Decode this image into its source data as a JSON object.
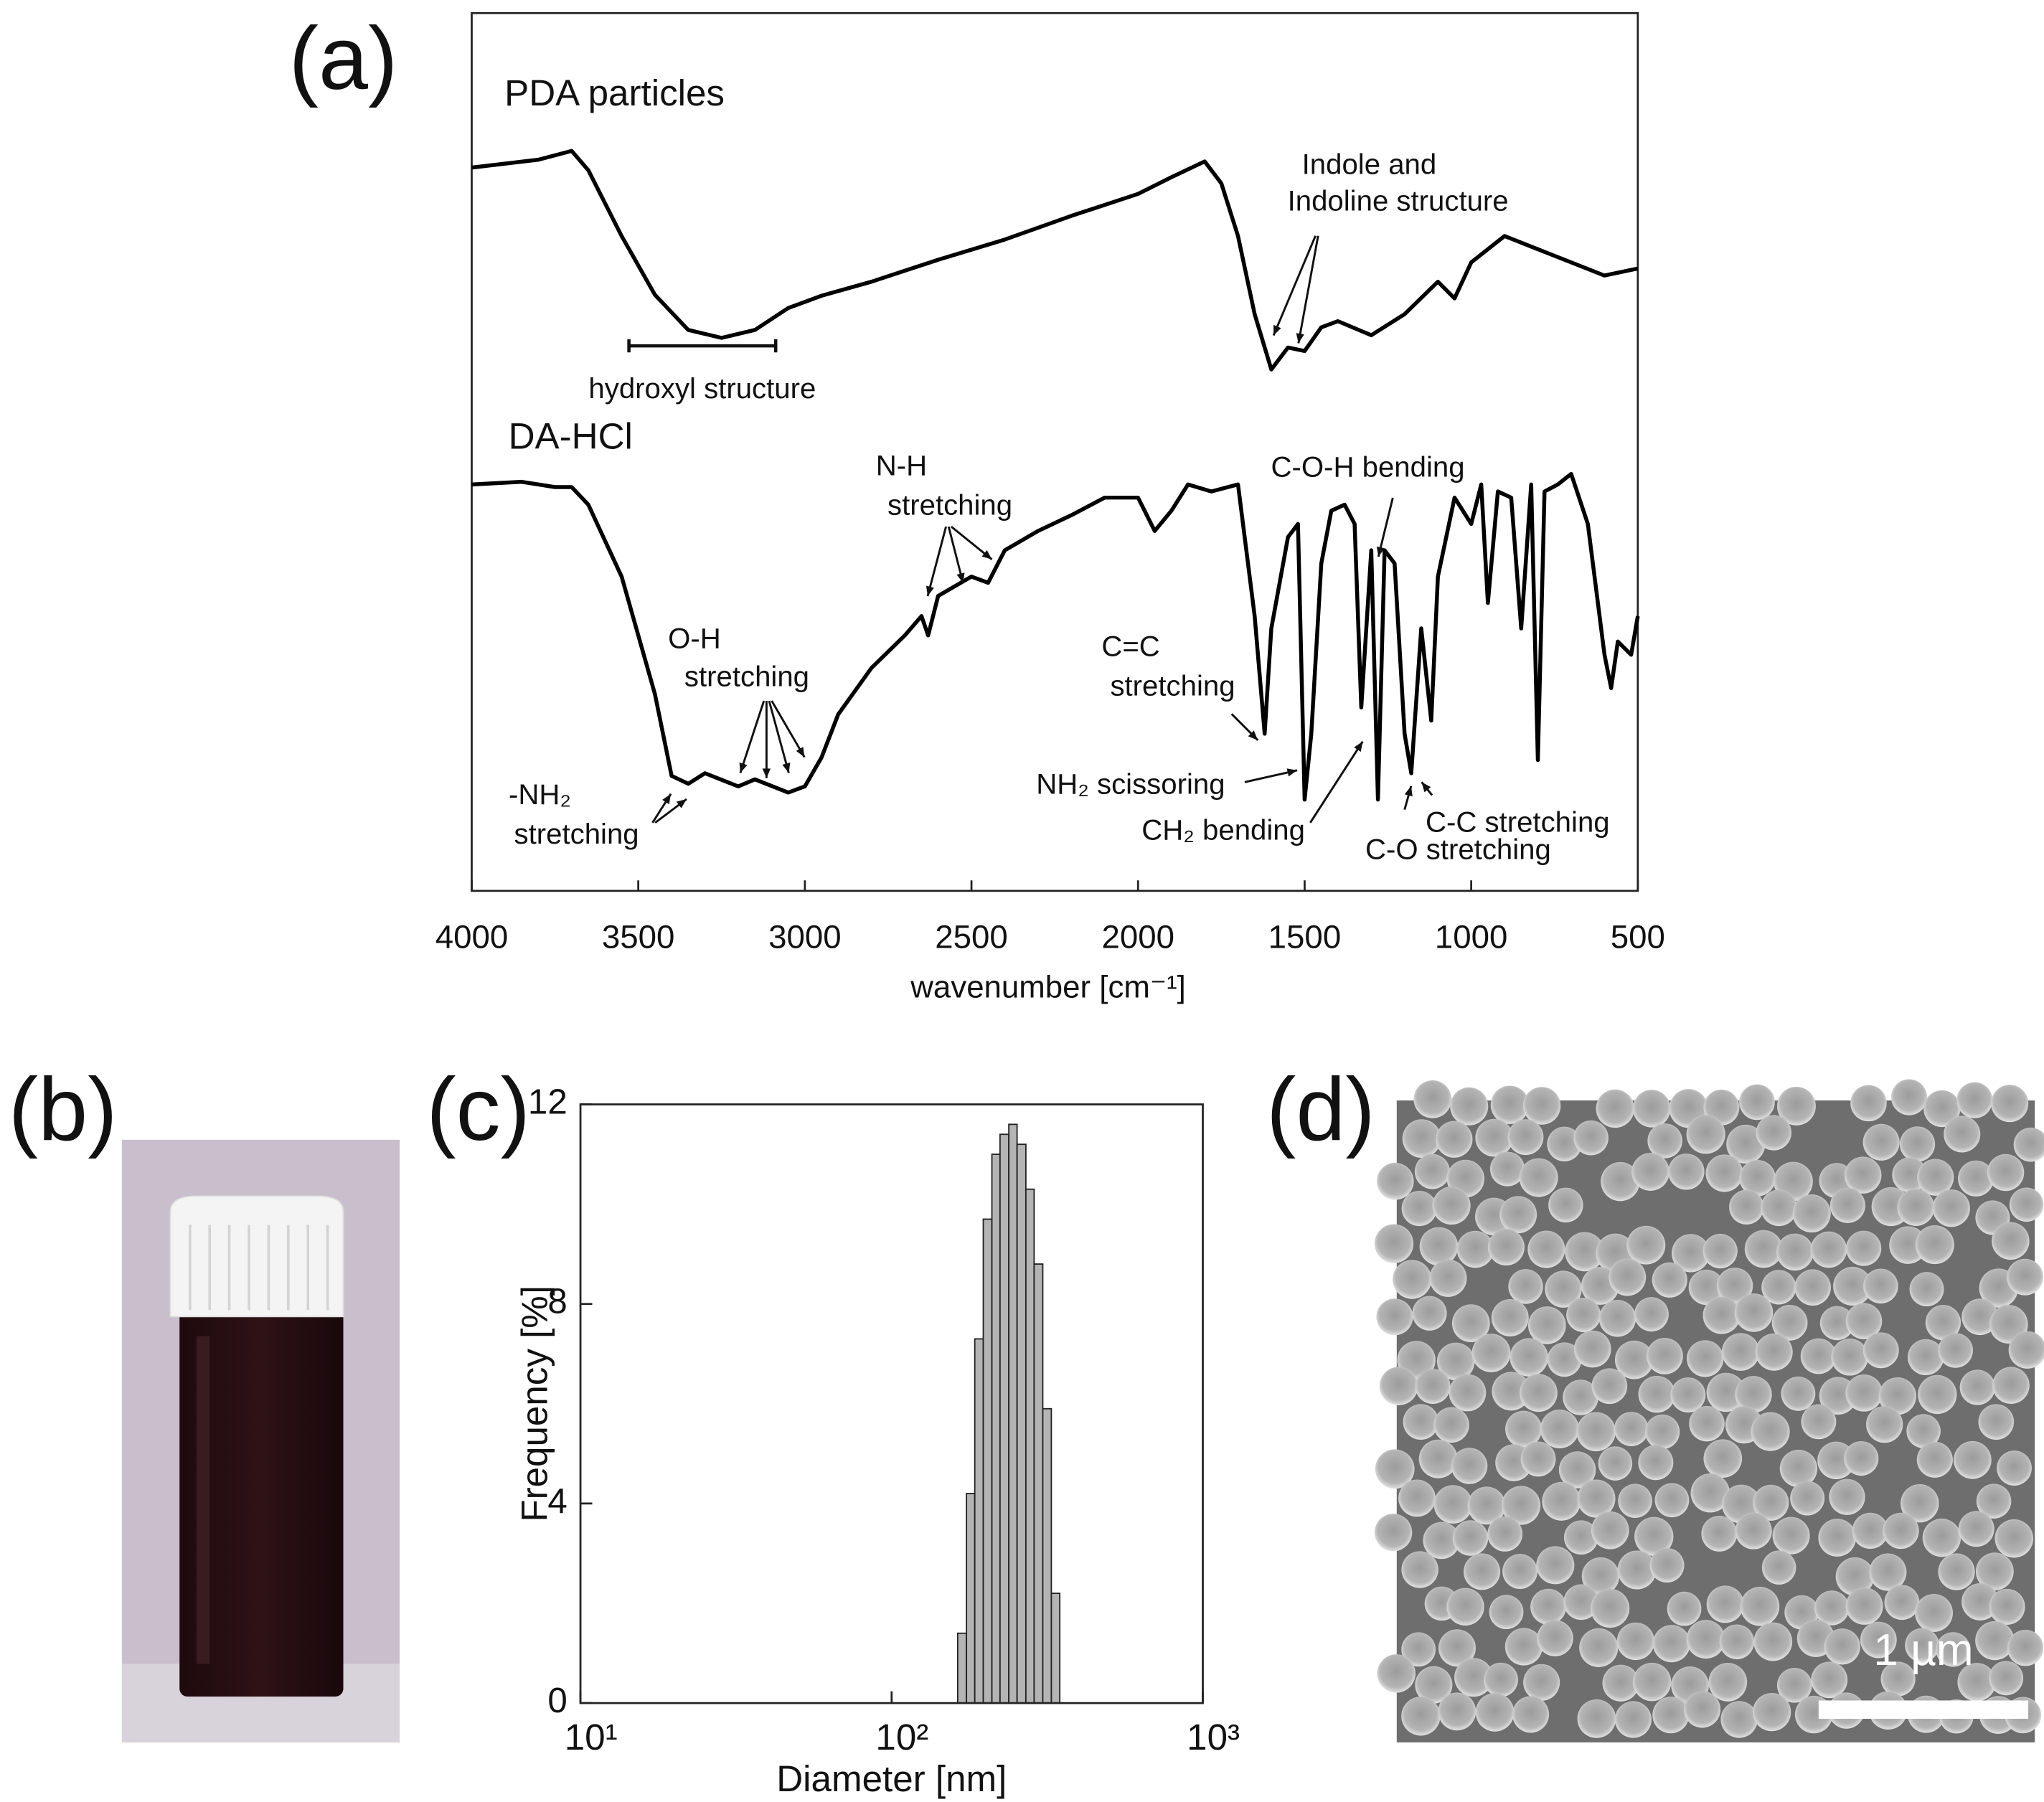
{
  "chart_data": [
    {
      "type": "line",
      "panel": "(a)",
      "xlabel": "wavenumber [cm⁻¹]",
      "xlim": [
        4000,
        500
      ],
      "xticks": [
        4000,
        3500,
        3000,
        2500,
        2000,
        1500,
        1000,
        500
      ],
      "ylim": [
        0,
        100
      ],
      "series": [
        {
          "name": "PDA particles",
          "color": "#000000",
          "x": [
            4000,
            3800,
            3700,
            3650,
            3550,
            3450,
            3350,
            3250,
            3150,
            3050,
            2950,
            2800,
            2600,
            2400,
            2200,
            2000,
            1900,
            1800,
            1750,
            1700,
            1650,
            1600,
            1550,
            1500,
            1450,
            1400,
            1300,
            1200,
            1100,
            1050,
            1000,
            900,
            800,
            700,
            600,
            500
          ],
          "values": [
            82.4,
            83.3,
            84.3,
            82.1,
            74.6,
            67.9,
            63.9,
            63.0,
            63.9,
            66.4,
            67.8,
            69.4,
            71.9,
            74.2,
            76.9,
            79.4,
            81.3,
            83.1,
            80.6,
            74.6,
            65.7,
            59.4,
            61.9,
            61.5,
            64.2,
            64.9,
            63.3,
            65.7,
            69.4,
            67.5,
            71.6,
            74.6,
            73.1,
            71.6,
            70.1,
            70.9
          ]
        },
        {
          "name": "DA-HCl",
          "color": "#000000",
          "x": [
            4000,
            3850,
            3750,
            3700,
            3650,
            3550,
            3450,
            3400,
            3350,
            3300,
            3200,
            3150,
            3050,
            3000,
            2950,
            2900,
            2800,
            2700,
            2650,
            2630,
            2600,
            2500,
            2450,
            2400,
            2300,
            2200,
            2100,
            2000,
            1950,
            1900,
            1850,
            1780,
            1700,
            1650,
            1620,
            1600,
            1550,
            1520,
            1500,
            1480,
            1450,
            1420,
            1380,
            1350,
            1330,
            1300,
            1280,
            1260,
            1230,
            1200,
            1180,
            1150,
            1120,
            1100,
            1050,
            1000,
            970,
            950,
            920,
            880,
            850,
            820,
            800,
            780,
            740,
            700,
            650,
            600,
            580,
            560,
            520,
            500
          ],
          "values": [
            46.3,
            46.6,
            46.0,
            46.0,
            44.0,
            35.8,
            22.4,
            13.1,
            12.2,
            13.4,
            11.9,
            12.7,
            11.2,
            11.9,
            15.2,
            20.1,
            25.4,
            29.1,
            31.3,
            29.1,
            33.6,
            35.8,
            35.1,
            38.8,
            41.0,
            42.8,
            44.8,
            44.8,
            41.0,
            43.3,
            46.3,
            45.5,
            46.3,
            31.3,
            17.9,
            29.9,
            40.3,
            41.8,
            10.4,
            17.9,
            37.3,
            43.3,
            44.0,
            41.8,
            20.9,
            38.8,
            10.4,
            38.8,
            37.3,
            17.9,
            13.4,
            29.9,
            19.4,
            35.8,
            44.8,
            41.8,
            46.3,
            32.8,
            45.5,
            44.8,
            29.9,
            46.3,
            14.9,
            45.5,
            46.3,
            47.5,
            41.8,
            26.9,
            23.1,
            28.4,
            26.9,
            31.3
          ]
        }
      ],
      "annotations": [
        {
          "text": [
            "hydroxyl structure"
          ]
        },
        {
          "text": [
            "Indole and",
            "Indoline structure"
          ]
        },
        {
          "text": [
            "N-H",
            "stretching"
          ]
        },
        {
          "text": [
            "C-O-H bending"
          ]
        },
        {
          "text": [
            "O-H",
            "stretching"
          ]
        },
        {
          "text": [
            "C=C",
            "stretching"
          ]
        },
        {
          "text": [
            "-NH₂",
            "stretching"
          ]
        },
        {
          "text": [
            "NH₂ scissoring"
          ]
        },
        {
          "text": [
            "CH₂ bending"
          ]
        },
        {
          "text": [
            "C-C stretching"
          ]
        },
        {
          "text": [
            "C-O stretching"
          ]
        }
      ]
    },
    {
      "type": "histogram",
      "panel": "(c)",
      "xlabel": "Diameter [nm]",
      "ylabel": "Frequency [%]",
      "xscale": "log",
      "xlim": [
        10,
        1000
      ],
      "xticks": [
        {
          "value": 10,
          "label": "10¹"
        },
        {
          "value": 100,
          "label": "10²"
        },
        {
          "value": 1000,
          "label": "10³"
        }
      ],
      "ylim": [
        0,
        12
      ],
      "yticks": [
        0,
        4,
        8,
        12
      ],
      "color": "#b4b4b4",
      "bins": [
        163,
        174,
        185,
        197,
        210,
        223,
        238,
        253,
        270,
        287,
        306,
        326,
        347
      ],
      "values": [
        1.4,
        4.2,
        7.3,
        9.7,
        11.0,
        11.4,
        11.6,
        11.2,
        10.3,
        8.8,
        5.9,
        2.2
      ]
    }
  ],
  "photo": {
    "panel": "(b)"
  },
  "micrograph": {
    "panel": "(d)",
    "scale_bar": "1 µm"
  }
}
